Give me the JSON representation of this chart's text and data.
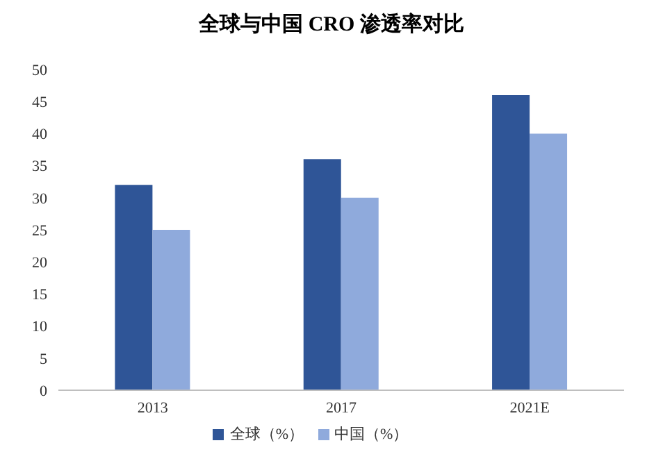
{
  "chart_data": {
    "type": "bar",
    "title": "全球与中国 CRO 渗透率对比",
    "categories": [
      "2013",
      "2017",
      "2021E"
    ],
    "series": [
      {
        "name": "全球（%）",
        "color": "#2f5597",
        "values": [
          32,
          36,
          46
        ]
      },
      {
        "name": "中国（%）",
        "color": "#8faadc",
        "values": [
          25,
          30,
          40
        ]
      }
    ],
    "ylim": [
      0,
      50
    ],
    "yticks": [
      0,
      5,
      10,
      15,
      20,
      25,
      30,
      35,
      40,
      45,
      50
    ],
    "grid": false,
    "legend": "bottom"
  }
}
